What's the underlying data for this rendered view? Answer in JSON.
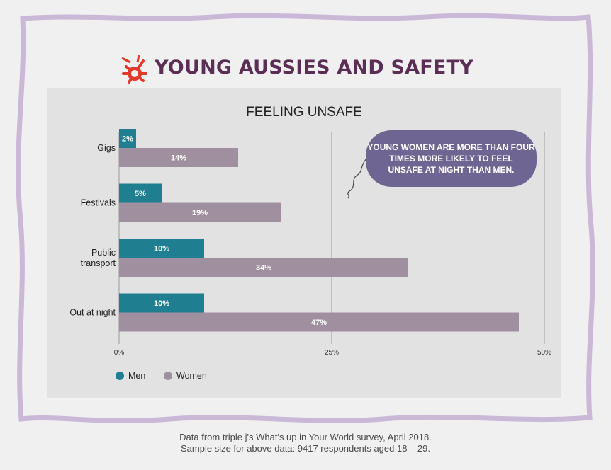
{
  "header": {
    "title": "YOUNG AUSSIES AND SAFETY"
  },
  "chart_data": {
    "type": "bar",
    "orientation": "horizontal",
    "title": "FEELING UNSAFE",
    "categories": [
      "Gigs",
      "Festivals",
      "Public transport",
      "Out at night"
    ],
    "series": [
      {
        "name": "Men",
        "values": [
          2,
          5,
          10,
          10
        ],
        "color": "#1f7f90"
      },
      {
        "name": "Women",
        "values": [
          14,
          19,
          34,
          47
        ],
        "color": "#a0909f"
      }
    ],
    "value_labels": {
      "Men": [
        "2%",
        "5%",
        "10%",
        "10%"
      ],
      "Women": [
        "14%",
        "19%",
        "34%",
        "47%"
      ]
    },
    "xlim": [
      0,
      50
    ],
    "x_ticks": [
      0,
      25,
      50
    ],
    "x_tick_labels": [
      "0%",
      "25%",
      "50%"
    ],
    "grid": true,
    "legend_position": "bottom-left",
    "annotation": "YOUNG WOMEN ARE MORE THAN FOUR TIMES MORE LIKELY TO FEEL UNSAFE AT NIGHT THAN MEN.",
    "annotation_color": "#6e6592"
  },
  "footer": {
    "line1": "Data from triple j's What's up in Your World survey, April 2018.",
    "line2": "Sample size for above data: 9417 respondents aged 18 – 29."
  },
  "colors": {
    "frame": "#c9b8d6",
    "heading": "#5a2e55",
    "logo": "#e03a2a"
  },
  "icons": {
    "logo": "triple-j-logo-icon"
  }
}
